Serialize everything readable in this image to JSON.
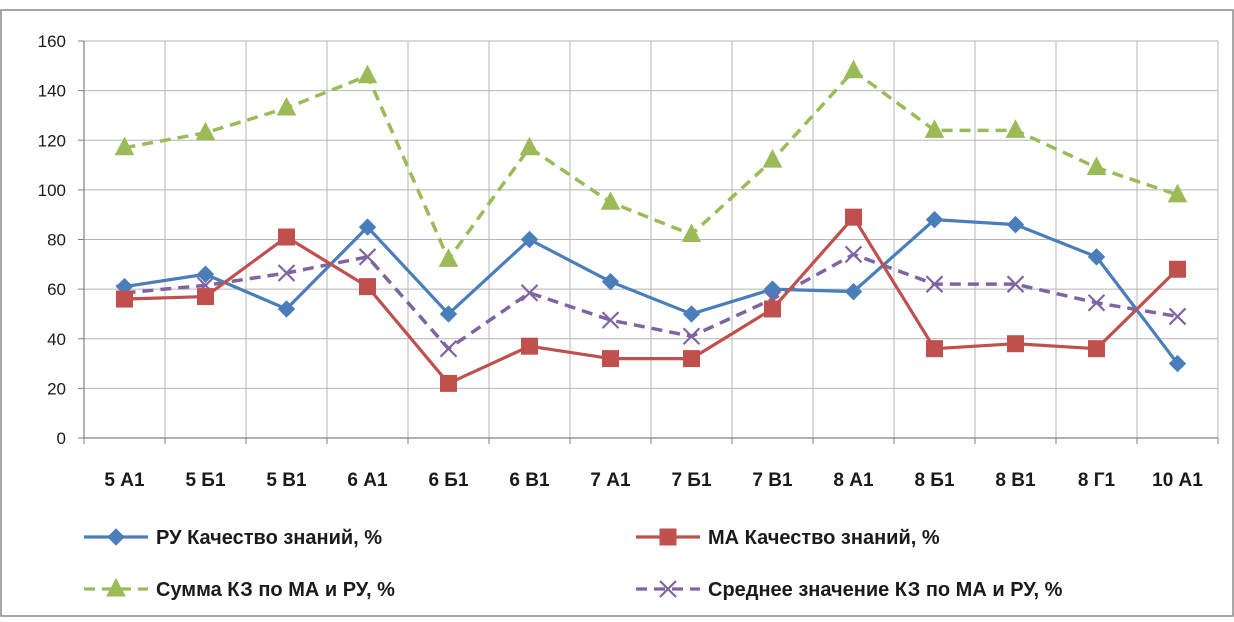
{
  "chart_data": {
    "type": "line",
    "title": "",
    "xlabel": "",
    "ylabel": "",
    "ylim": [
      0,
      160
    ],
    "yticks": [
      0,
      20,
      40,
      60,
      80,
      100,
      120,
      140,
      160
    ],
    "grid": true,
    "legend_position": "bottom",
    "categories": [
      "5 А1",
      "5 Б1",
      "5 В1",
      "6 А1",
      "6 Б1",
      "6 В1",
      "7 А1",
      "7 Б1",
      "7 В1",
      "8 А1",
      "8 Б1",
      "8 В1",
      "8 Г1",
      "10 А1"
    ],
    "series": [
      {
        "name": "РУ Качество знаний, %",
        "color": "#4a7ebb",
        "marker": "diamond",
        "dash": "solid",
        "values": [
          61,
          66,
          52,
          85,
          50,
          80,
          63,
          50,
          60,
          59,
          88,
          86,
          73,
          30
        ]
      },
      {
        "name": "МА Качество знаний, %",
        "color": "#c0504d",
        "marker": "square",
        "dash": "solid",
        "values": [
          56,
          57,
          81,
          61,
          22,
          37,
          32,
          32,
          52,
          89,
          36,
          38,
          36,
          68
        ]
      },
      {
        "name": "Сумма КЗ по МА и РУ, %",
        "color": "#9bbb59",
        "marker": "triangle",
        "dash": "dashed",
        "values": [
          117,
          123,
          133,
          146,
          72,
          117,
          95,
          82,
          112,
          148,
          124,
          124,
          109,
          98
        ]
      },
      {
        "name": "Среднее значение КЗ по МА и РУ, %",
        "color": "#8064a2",
        "marker": "x",
        "dash": "dashed",
        "values": [
          58.5,
          61.5,
          66.5,
          73,
          36,
          58.5,
          47.5,
          41,
          56,
          74,
          62,
          62,
          54.5,
          49
        ]
      }
    ]
  }
}
